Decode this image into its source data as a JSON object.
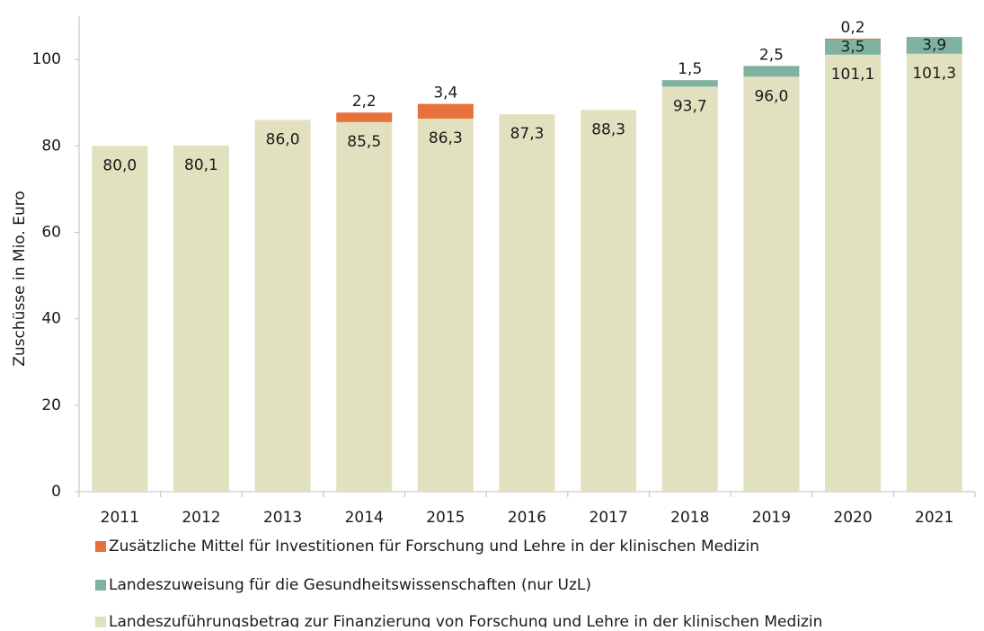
{
  "chart_data": {
    "type": "stacked_bar",
    "y_label": "Zuschüsse in Mio. Euro",
    "categories": [
      "2011",
      "2012",
      "2013",
      "2014",
      "2015",
      "2016",
      "2017",
      "2018",
      "2019",
      "2020",
      "2021"
    ],
    "series": [
      {
        "name": "Landeszuführungsbetrag zur Finanzierung von Forschung und Lehre in der klinischen Medizin",
        "color": "#e1e1bf",
        "values": [
          80.0,
          80.1,
          86.0,
          85.5,
          86.3,
          87.3,
          88.3,
          93.7,
          96.0,
          101.1,
          101.3
        ],
        "value_labels": [
          "80,0",
          "80,1",
          "86,0",
          "85,5",
          "86,3",
          "87,3",
          "88,3",
          "93,7",
          "96,0",
          "101,1",
          "101,3"
        ]
      },
      {
        "name": "Landeszuweisung für die Gesundheitswissenschaften (nur UzL)",
        "color": "#7fb3a0",
        "values": [
          null,
          null,
          null,
          null,
          null,
          null,
          null,
          1.5,
          2.5,
          3.5,
          3.9
        ],
        "value_labels": [
          null,
          null,
          null,
          null,
          null,
          null,
          null,
          "1,5",
          "2,5",
          "3,5",
          "3,9"
        ]
      },
      {
        "name": "Zusätzliche Mittel für Investitionen für Forschung und Lehre in der klinischen Medizin",
        "color": "#e8703a",
        "values": [
          null,
          null,
          null,
          2.2,
          3.4,
          null,
          null,
          null,
          null,
          0.2,
          null
        ],
        "value_labels": [
          null,
          null,
          null,
          "2,2",
          "3,4",
          null,
          null,
          null,
          null,
          "0,2",
          null
        ]
      }
    ],
    "ylim": [
      0,
      110
    ],
    "yticks": [
      0,
      20,
      40,
      60,
      80,
      100
    ]
  }
}
